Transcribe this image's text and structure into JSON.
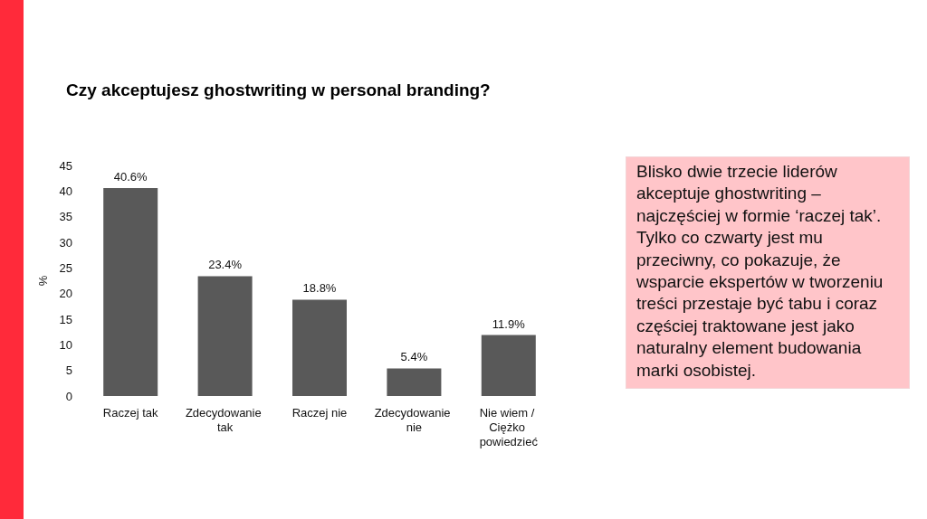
{
  "chart_data": {
    "type": "bar",
    "title": "Czy akceptujesz ghostwriting w personal branding?",
    "ylabel": "%",
    "categories": [
      "Raczej tak",
      "Zdecydowanie tak",
      "Raczej nie",
      "Zdecydowanie nie",
      "Nie wiem / Ciężko powiedzieć"
    ],
    "values": [
      40.6,
      23.4,
      18.8,
      5.4,
      11.9
    ],
    "value_labels": [
      "40.6%",
      "23.4%",
      "18.8%",
      "5.4%",
      "11.9%"
    ],
    "color": "#595959",
    "ylim": [
      0,
      45
    ],
    "yticks": [
      0,
      5,
      10,
      15,
      20,
      25,
      30,
      35,
      40,
      45
    ],
    "annotations": [
      "Blisko dwie trzecie liderów akceptuje ghostwriting – najczęściej w formie ‘raczej tak’. Tylko co czwarty jest mu przeciwny, co pokazuje, że wsparcie ekspertów w tworzeniu treści przestaje być tabu i coraz częściej traktowane jest jako naturalny element budowania marki osobistej."
    ]
  }
}
